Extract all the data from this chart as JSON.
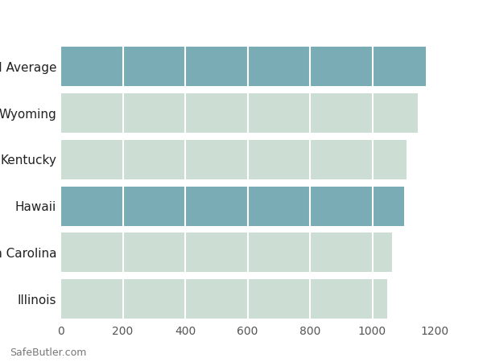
{
  "categories": [
    "National Average",
    "Wyoming",
    "Kentucky",
    "Hawaii",
    "North Carolina",
    "Illinois"
  ],
  "values": [
    1172,
    1145,
    1110,
    1103,
    1063,
    1048
  ],
  "bar_colors": [
    "#7aacb5",
    "#ccddd4",
    "#ccddd4",
    "#7aacb5",
    "#ccddd4",
    "#ccddd4"
  ],
  "xlim": [
    0,
    1200
  ],
  "xticks": [
    0,
    200,
    400,
    600,
    800,
    1000,
    1200
  ],
  "background_color": "#ffffff",
  "axes_bg_color": "#ffffff",
  "grid_color": "#ffffff",
  "bar_height": 0.85,
  "footer_text": "SafeButler.com",
  "label_fontsize": 11,
  "tick_fontsize": 10,
  "figsize": [
    6.0,
    4.5
  ],
  "dpi": 100
}
